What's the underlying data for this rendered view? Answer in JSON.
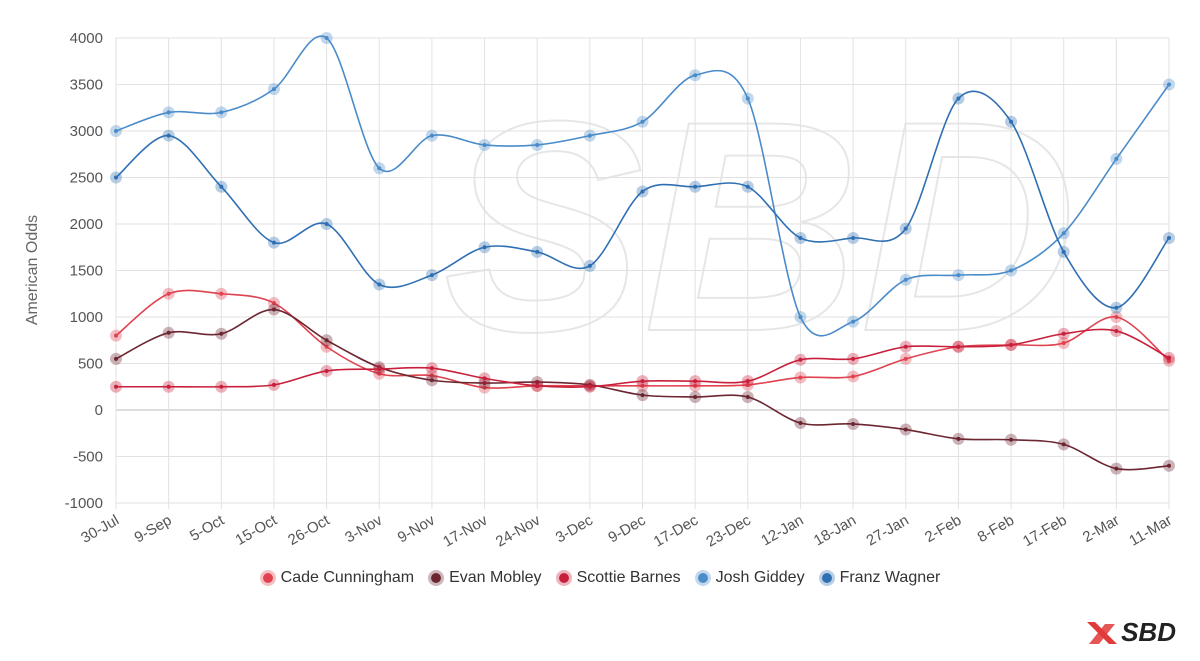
{
  "chart_data": {
    "type": "line",
    "title": "",
    "xlabel": "",
    "ylabel": "American Odds",
    "ylim": [
      -1000,
      4000
    ],
    "yticks": [
      -1000,
      -500,
      0,
      500,
      1000,
      1500,
      2000,
      2500,
      3000,
      3500,
      4000
    ],
    "grid": true,
    "legend_placement": "bottom",
    "categories": [
      "30-Jul",
      "9-Sep",
      "5-Oct",
      "15-Oct",
      "26-Oct",
      "3-Nov",
      "9-Nov",
      "17-Nov",
      "24-Nov",
      "3-Dec",
      "9-Dec",
      "17-Dec",
      "23-Dec",
      "12-Jan",
      "18-Jan",
      "27-Jan",
      "2-Feb",
      "8-Feb",
      "17-Feb",
      "2-Mar",
      "11-Mar"
    ],
    "series": [
      {
        "name": "Cade Cunningham",
        "color": "#e0424f",
        "values": [
          800,
          1250,
          1250,
          1150,
          680,
          390,
          370,
          240,
          260,
          260,
          260,
          260,
          270,
          350,
          360,
          550,
          680,
          700,
          720,
          1000,
          530
        ]
      },
      {
        "name": "Evan Mobley",
        "color": "#6b2630",
        "values": [
          550,
          830,
          820,
          1080,
          750,
          460,
          320,
          290,
          300,
          270,
          160,
          140,
          140,
          -140,
          -150,
          -210,
          -310,
          -320,
          -370,
          -630,
          -600
        ]
      },
      {
        "name": "Scottie Barnes",
        "color": "#c8203c",
        "values": [
          250,
          250,
          250,
          270,
          420,
          440,
          450,
          340,
          260,
          250,
          310,
          310,
          310,
          540,
          550,
          680,
          680,
          700,
          820,
          850,
          560
        ]
      },
      {
        "name": "Josh Giddey",
        "color": "#4a8bc9",
        "values": [
          3000,
          3200,
          3200,
          3450,
          4000,
          2600,
          2950,
          2850,
          2850,
          2950,
          3100,
          3600,
          3350,
          1000,
          950,
          1400,
          1450,
          1500,
          1900,
          2700,
          3500
        ]
      },
      {
        "name": "Franz Wagner",
        "color": "#2f6fb3",
        "values": [
          2500,
          2950,
          2400,
          1800,
          2000,
          1350,
          1450,
          1750,
          1700,
          1550,
          2350,
          2400,
          2400,
          1850,
          1850,
          1950,
          3350,
          3100,
          1700,
          1100,
          1850
        ]
      }
    ]
  },
  "brand": {
    "logo_text": "SBD",
    "watermark_text": "SBD"
  }
}
